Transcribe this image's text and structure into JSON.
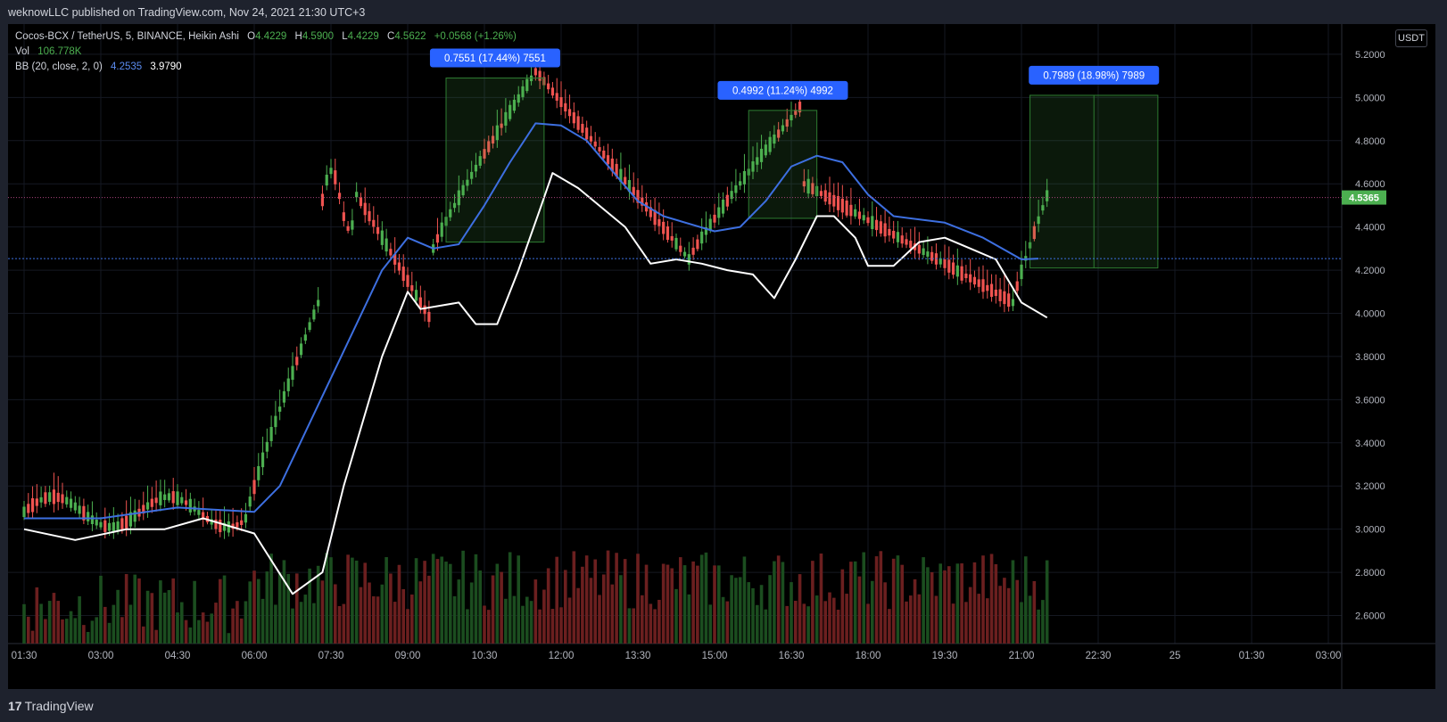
{
  "header": {
    "publisher_line": "weknowLLC published on TradingView.com, Nov 24, 2021 21:30 UTC+3"
  },
  "legend": {
    "symbol": "Cocos-BCX / TetherUS, 5, BINANCE, Heikin Ashi",
    "o_key": "O",
    "o_val": "4.4229",
    "h_key": "H",
    "h_val": "4.5900",
    "l_key": "L",
    "l_val": "4.4229",
    "c_key": "C",
    "c_val": "4.5622",
    "change": "+0.0568 (+1.26%)",
    "vol_label": "Vol",
    "vol_val": "106.778K",
    "bb_label": "BB (20, close, 2, 0)",
    "bb_basis": "4.2535",
    "bb_lower": "3.9790"
  },
  "currency_button": "USDT",
  "footer": {
    "brand": "TradingView",
    "logo_mark": "17"
  },
  "colors": {
    "up": "#4caf50",
    "down": "#ef5350",
    "basis": "#3d6fe0",
    "lower": "#ffffff",
    "label_bg": "#2962ff",
    "price_tag": "#4caf50"
  },
  "chart_data": {
    "type": "candlestick",
    "chart_style": "Heikin Ashi",
    "x_tick_labels": [
      "01:30",
      "03:00",
      "04:30",
      "06:00",
      "07:30",
      "09:00",
      "10:30",
      "12:00",
      "13:30",
      "15:00",
      "16:30",
      "18:00",
      "19:30",
      "21:00",
      "22:30",
      "25",
      "01:30",
      "03:00"
    ],
    "y_tick_labels": [
      "5.2000",
      "5.0000",
      "4.8000",
      "4.6000",
      "4.4000",
      "4.2000",
      "4.0000",
      "3.8000",
      "3.6000",
      "3.4000",
      "3.2000",
      "3.0000",
      "2.8000",
      "2.6000"
    ],
    "ylim": [
      2.47,
      5.34
    ],
    "current_price": "4.5365",
    "current_price_value": 4.5365,
    "basis_level": 4.2535,
    "measure_labels": [
      {
        "text": "0.7551 (17.44%) 7551",
        "from_time": "09:45",
        "to_time": "11:40",
        "low": 4.33,
        "high": 5.09
      },
      {
        "text": "0.4992 (11.24%) 4992",
        "from_time": "15:40",
        "to_time": "17:00",
        "low": 4.44,
        "high": 4.94
      },
      {
        "text": "0.7989 (18.98%) 7989",
        "from_time": "21:10",
        "to_time": "23:40",
        "low": 4.21,
        "high": 5.01
      }
    ],
    "series": [
      {
        "name": "BB basis",
        "points": [
          [
            "01:30",
            3.05
          ],
          [
            "03:00",
            3.05
          ],
          [
            "04:30",
            3.1
          ],
          [
            "06:00",
            3.08
          ],
          [
            "06:30",
            3.2
          ],
          [
            "07:30",
            3.7
          ],
          [
            "08:30",
            4.2
          ],
          [
            "09:00",
            4.35
          ],
          [
            "09:30",
            4.3
          ],
          [
            "10:00",
            4.32
          ],
          [
            "10:30",
            4.5
          ],
          [
            "11:00",
            4.7
          ],
          [
            "11:30",
            4.88
          ],
          [
            "12:00",
            4.87
          ],
          [
            "12:30",
            4.8
          ],
          [
            "13:30",
            4.52
          ],
          [
            "14:00",
            4.45
          ],
          [
            "15:00",
            4.38
          ],
          [
            "15:30",
            4.4
          ],
          [
            "16:00",
            4.52
          ],
          [
            "16:30",
            4.68
          ],
          [
            "17:00",
            4.73
          ],
          [
            "17:30",
            4.7
          ],
          [
            "18:00",
            4.55
          ],
          [
            "18:30",
            4.45
          ],
          [
            "19:30",
            4.42
          ],
          [
            "20:15",
            4.35
          ],
          [
            "21:00",
            4.25
          ],
          [
            "21:20",
            4.2535
          ]
        ]
      },
      {
        "name": "BB lower",
        "points": [
          [
            "01:30",
            3.0
          ],
          [
            "02:30",
            2.95
          ],
          [
            "03:30",
            3.0
          ],
          [
            "04:15",
            3.0
          ],
          [
            "05:00",
            3.05
          ],
          [
            "06:00",
            2.98
          ],
          [
            "06:45",
            2.7
          ],
          [
            "07:20",
            2.8
          ],
          [
            "07:45",
            3.2
          ],
          [
            "08:30",
            3.8
          ],
          [
            "09:00",
            4.1
          ],
          [
            "09:15",
            4.02
          ],
          [
            "10:00",
            4.05
          ],
          [
            "10:20",
            3.95
          ],
          [
            "10:45",
            3.95
          ],
          [
            "11:10",
            4.2
          ],
          [
            "11:35",
            4.48
          ],
          [
            "11:50",
            4.65
          ],
          [
            "12:20",
            4.58
          ],
          [
            "13:15",
            4.4
          ],
          [
            "13:45",
            4.23
          ],
          [
            "14:15",
            4.25
          ],
          [
            "14:45",
            4.23
          ],
          [
            "15:15",
            4.2
          ],
          [
            "15:45",
            4.18
          ],
          [
            "16:10",
            4.07
          ],
          [
            "16:35",
            4.25
          ],
          [
            "17:00",
            4.45
          ],
          [
            "17:20",
            4.45
          ],
          [
            "17:45",
            4.35
          ],
          [
            "18:00",
            4.22
          ],
          [
            "18:30",
            4.22
          ],
          [
            "19:00",
            4.33
          ],
          [
            "19:30",
            4.35
          ],
          [
            "20:00",
            4.3
          ],
          [
            "20:30",
            4.25
          ],
          [
            "21:00",
            4.05
          ],
          [
            "21:30",
            3.98
          ]
        ]
      }
    ],
    "price_segments": [
      {
        "from": "01:30",
        "to": "05:50",
        "low": 2.98,
        "high": 3.18,
        "trend": "sideways"
      },
      {
        "from": "05:50",
        "to": "07:20",
        "low": 3.05,
        "high": 4.1,
        "trend": "up"
      },
      {
        "from": "07:20",
        "to": "08:00",
        "low": 4.3,
        "high": 4.75,
        "trend": "top"
      },
      {
        "from": "08:00",
        "to": "09:30",
        "low": 3.95,
        "high": 4.55,
        "trend": "down"
      },
      {
        "from": "09:30",
        "to": "11:35",
        "low": 4.3,
        "high": 5.15,
        "trend": "up"
      },
      {
        "from": "11:35",
        "to": "14:30",
        "low": 4.25,
        "high": 5.1,
        "trend": "down"
      },
      {
        "from": "14:30",
        "to": "16:45",
        "low": 4.25,
        "high": 4.98,
        "trend": "up"
      },
      {
        "from": "16:45",
        "to": "20:50",
        "low": 4.05,
        "high": 4.6,
        "trend": "down"
      },
      {
        "from": "20:50",
        "to": "21:35",
        "low": 4.05,
        "high": 4.6,
        "trend": "up"
      }
    ],
    "volume_label": "Vol",
    "grid": true,
    "legend_position": "top-left"
  }
}
